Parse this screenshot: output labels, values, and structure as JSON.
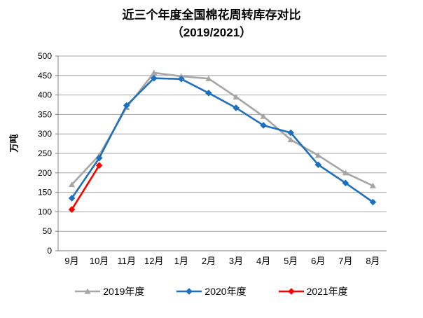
{
  "title": {
    "line1": "近三个年度全国棉花周转库存对比",
    "line2": "（2019/2021）"
  },
  "chart_data": {
    "type": "line",
    "title": "近三个年度全国棉花周转库存对比（2019/2021）",
    "ylabel": "万吨",
    "xlabel": "",
    "ylim": [
      0,
      500
    ],
    "ytick_step": 50,
    "grid": true,
    "legend_position": "bottom",
    "categories": [
      "9月",
      "10月",
      "11月",
      "12月",
      "1月",
      "2月",
      "3月",
      "4月",
      "5月",
      "6月",
      "7月",
      "8月"
    ],
    "series": [
      {
        "name": "2019年度",
        "color": "#A6A6A6",
        "marker": "triangle",
        "values": [
          170,
          245,
          368,
          457,
          448,
          442,
          395,
          345,
          285,
          245,
          200,
          167
        ]
      },
      {
        "name": "2020年度",
        "color": "#1F6FBF",
        "marker": "diamond",
        "values": [
          135,
          238,
          373,
          443,
          441,
          405,
          367,
          322,
          303,
          221,
          174,
          125
        ]
      },
      {
        "name": "2021年度",
        "color": "#FF0000",
        "marker": "diamond",
        "values": [
          106,
          219,
          null,
          null,
          null,
          null,
          null,
          null,
          null,
          null,
          null,
          null
        ]
      }
    ],
    "axis_color": "#808080",
    "grid_color": "#A6A6A6"
  }
}
